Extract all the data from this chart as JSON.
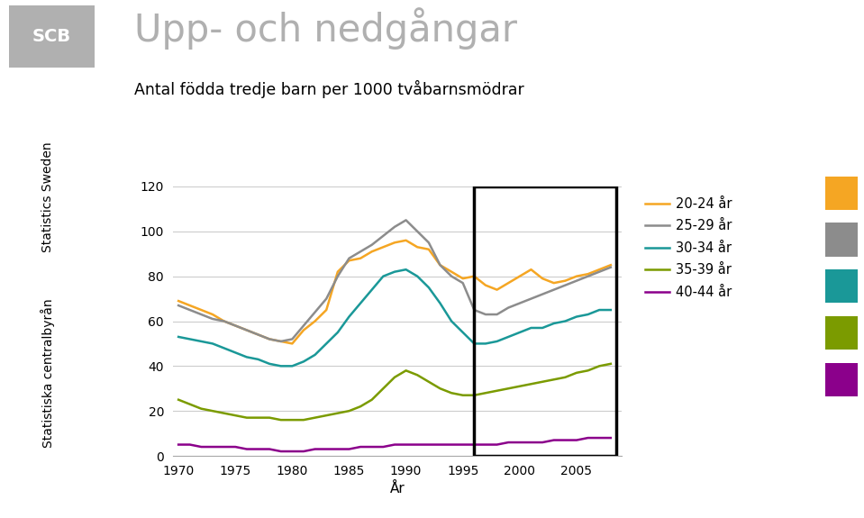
{
  "title": "Upp- och nedgångar",
  "subtitle": "Antal födda tredje barn per 1000 tvåbarnsmödrar",
  "xlabel": "År",
  "ylim": [
    0,
    120
  ],
  "yticks": [
    0,
    20,
    40,
    60,
    80,
    100,
    120
  ],
  "xlim": [
    1969.5,
    2009
  ],
  "xticks": [
    1970,
    1975,
    1980,
    1985,
    1990,
    1995,
    2000,
    2005
  ],
  "background_color": "#ffffff",
  "rect_x1": 1996,
  "rect_x2": 2008.5,
  "rect_y1": 0,
  "rect_y2": 120,
  "left_label_top": "Statistics Sweden",
  "left_label_bottom": "Statistiska centralbyrån",
  "color_swatches": [
    "#f5a623",
    "#8c8c8c",
    "#1a9898",
    "#7b9b00",
    "#8b008b"
  ],
  "series": {
    "20-24 år": {
      "color": "#f5a623",
      "years": [
        1970,
        1971,
        1972,
        1973,
        1974,
        1975,
        1976,
        1977,
        1978,
        1979,
        1980,
        1981,
        1982,
        1983,
        1984,
        1985,
        1986,
        1987,
        1988,
        1989,
        1990,
        1991,
        1992,
        1993,
        1994,
        1995,
        1996,
        1997,
        1998,
        1999,
        2000,
        2001,
        2002,
        2003,
        2004,
        2005,
        2006,
        2007,
        2008
      ],
      "values": [
        69,
        67,
        65,
        63,
        60,
        58,
        56,
        54,
        52,
        51,
        50,
        56,
        60,
        65,
        82,
        87,
        88,
        91,
        93,
        95,
        96,
        93,
        92,
        85,
        82,
        79,
        80,
        76,
        74,
        77,
        80,
        83,
        79,
        77,
        78,
        80,
        81,
        83,
        85
      ]
    },
    "25-29 år": {
      "color": "#8c8c8c",
      "years": [
        1970,
        1971,
        1972,
        1973,
        1974,
        1975,
        1976,
        1977,
        1978,
        1979,
        1980,
        1981,
        1982,
        1983,
        1984,
        1985,
        1986,
        1987,
        1988,
        1989,
        1990,
        1991,
        1992,
        1993,
        1994,
        1995,
        1996,
        1997,
        1998,
        1999,
        2000,
        2001,
        2002,
        2003,
        2004,
        2005,
        2006,
        2007,
        2008
      ],
      "values": [
        67,
        65,
        63,
        61,
        60,
        58,
        56,
        54,
        52,
        51,
        52,
        58,
        64,
        70,
        80,
        88,
        91,
        94,
        98,
        102,
        105,
        100,
        95,
        85,
        80,
        77,
        65,
        63,
        63,
        66,
        68,
        70,
        72,
        74,
        76,
        78,
        80,
        82,
        84
      ]
    },
    "30-34 år": {
      "color": "#1a9898",
      "years": [
        1970,
        1971,
        1972,
        1973,
        1974,
        1975,
        1976,
        1977,
        1978,
        1979,
        1980,
        1981,
        1982,
        1983,
        1984,
        1985,
        1986,
        1987,
        1988,
        1989,
        1990,
        1991,
        1992,
        1993,
        1994,
        1995,
        1996,
        1997,
        1998,
        1999,
        2000,
        2001,
        2002,
        2003,
        2004,
        2005,
        2006,
        2007,
        2008
      ],
      "values": [
        53,
        52,
        51,
        50,
        48,
        46,
        44,
        43,
        41,
        40,
        40,
        42,
        45,
        50,
        55,
        62,
        68,
        74,
        80,
        82,
        83,
        80,
        75,
        68,
        60,
        55,
        50,
        50,
        51,
        53,
        55,
        57,
        57,
        59,
        60,
        62,
        63,
        65,
        65
      ]
    },
    "35-39 år": {
      "color": "#7b9b00",
      "years": [
        1970,
        1971,
        1972,
        1973,
        1974,
        1975,
        1976,
        1977,
        1978,
        1979,
        1980,
        1981,
        1982,
        1983,
        1984,
        1985,
        1986,
        1987,
        1988,
        1989,
        1990,
        1991,
        1992,
        1993,
        1994,
        1995,
        1996,
        1997,
        1998,
        1999,
        2000,
        2001,
        2002,
        2003,
        2004,
        2005,
        2006,
        2007,
        2008
      ],
      "values": [
        25,
        23,
        21,
        20,
        19,
        18,
        17,
        17,
        17,
        16,
        16,
        16,
        17,
        18,
        19,
        20,
        22,
        25,
        30,
        35,
        38,
        36,
        33,
        30,
        28,
        27,
        27,
        28,
        29,
        30,
        31,
        32,
        33,
        34,
        35,
        37,
        38,
        40,
        41
      ]
    },
    "40-44 år": {
      "color": "#8b008b",
      "years": [
        1970,
        1971,
        1972,
        1973,
        1974,
        1975,
        1976,
        1977,
        1978,
        1979,
        1980,
        1981,
        1982,
        1983,
        1984,
        1985,
        1986,
        1987,
        1988,
        1989,
        1990,
        1991,
        1992,
        1993,
        1994,
        1995,
        1996,
        1997,
        1998,
        1999,
        2000,
        2001,
        2002,
        2003,
        2004,
        2005,
        2006,
        2007,
        2008
      ],
      "values": [
        5,
        5,
        4,
        4,
        4,
        4,
        3,
        3,
        3,
        2,
        2,
        2,
        3,
        3,
        3,
        3,
        4,
        4,
        4,
        5,
        5,
        5,
        5,
        5,
        5,
        5,
        5,
        5,
        5,
        6,
        6,
        6,
        6,
        7,
        7,
        7,
        8,
        8,
        8
      ]
    }
  }
}
